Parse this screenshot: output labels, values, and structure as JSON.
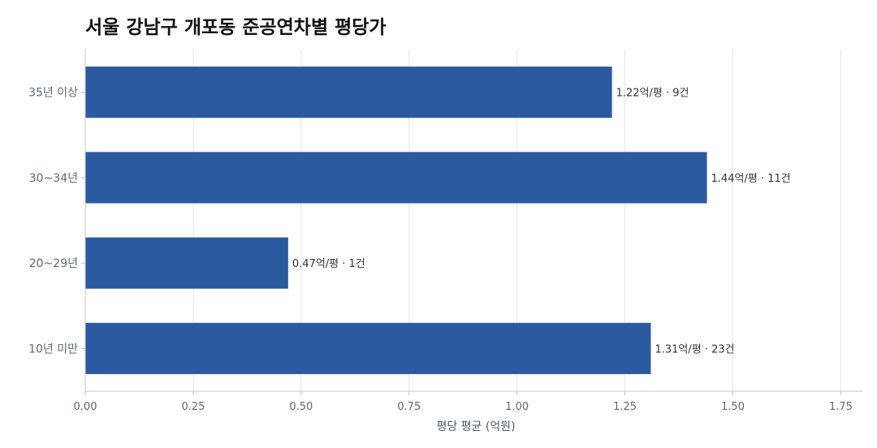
{
  "chart_data": {
    "type": "bar",
    "orientation": "horizontal",
    "title": "서울 강남구 개포동 준공연차별 평당가",
    "xlabel": "평당 평균 (억원)",
    "ylabel": "",
    "categories": [
      "35년 이상",
      "30~34년",
      "20~29년",
      "10년 미만"
    ],
    "values": [
      1.22,
      1.44,
      0.47,
      1.31
    ],
    "data_labels": [
      "1.22억/평 · 9건",
      "1.44억/평 · 11건",
      "0.47억/평 · 1건",
      "1.31억/평 · 23건"
    ],
    "xlim": [
      0,
      1.8
    ],
    "xticks": [
      "0.00",
      "0.25",
      "0.50",
      "0.75",
      "1.00",
      "1.25",
      "1.50",
      "1.75"
    ],
    "xtick_values": [
      0,
      0.25,
      0.5,
      0.75,
      1.0,
      1.25,
      1.5,
      1.75
    ],
    "bar_color": "#2b5aa0",
    "grid": true
  }
}
